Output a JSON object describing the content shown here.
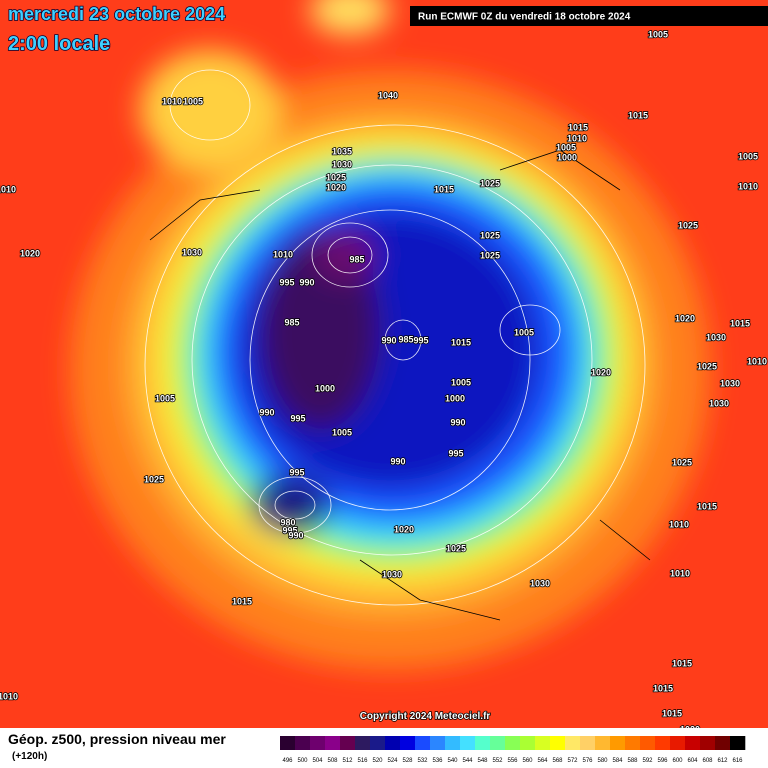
{
  "header": {
    "date": "mercredi 23 octobre 2024",
    "time": "2:00 locale",
    "run": "Run ECMWF 0Z du vendredi 18 octobre 2024"
  },
  "isobar_labels": [
    "1005",
    "1040",
    "1010",
    "1005",
    "1015",
    "1015",
    "1005",
    "1035",
    "1030",
    "1025",
    "1020",
    "1015",
    "1025",
    "1010",
    "1010",
    "1020",
    "1030",
    "1010",
    "985",
    "995",
    "990",
    "1025",
    "1025",
    "1025",
    "985",
    "990",
    "985",
    "995",
    "1015",
    "1005",
    "1020",
    "1015",
    "1030",
    "1025",
    "1020",
    "1030",
    "1010",
    "1000",
    "1005",
    "1000",
    "1030",
    "1005",
    "990",
    "995",
    "990",
    "1005",
    "990",
    "995",
    "1025",
    "1025",
    "995",
    "1015",
    "980",
    "995",
    "990",
    "1010",
    "1020",
    "1025",
    "1030",
    "1030",
    "1010",
    "1015",
    "1015",
    "1010",
    "1015",
    "1015",
    "1020",
    "1010",
    "1005",
    "1000"
  ],
  "footer": {
    "copyright": "Copyright 2024 Meteociel.fr",
    "title": "Géop. z500, pression niveau mer",
    "lead": "(+120h)"
  },
  "colorbar": {
    "labels": [
      496,
      500,
      504,
      508,
      512,
      516,
      520,
      524,
      528,
      532,
      536,
      540,
      544,
      548,
      552,
      556,
      560,
      564,
      568,
      572,
      576,
      580,
      584,
      588,
      592,
      596,
      600,
      604,
      608,
      612,
      616
    ],
    "colors": [
      "#2a0030",
      "#4b0050",
      "#6e006e",
      "#8a008a",
      "#650050",
      "#2d1a60",
      "#1a1a8a",
      "#0000b0",
      "#0000e0",
      "#1a4bff",
      "#2b86ff",
      "#33bbff",
      "#44e0ff",
      "#55ffcc",
      "#66ff99",
      "#88ff55",
      "#aaff33",
      "#d8ff22",
      "#ffff00",
      "#ffe866",
      "#ffd066",
      "#ffb830",
      "#ff9a00",
      "#ff7a00",
      "#ff5a00",
      "#ff3a00",
      "#e81a00",
      "#c80000",
      "#a00000",
      "#700000",
      "#000000"
    ]
  }
}
